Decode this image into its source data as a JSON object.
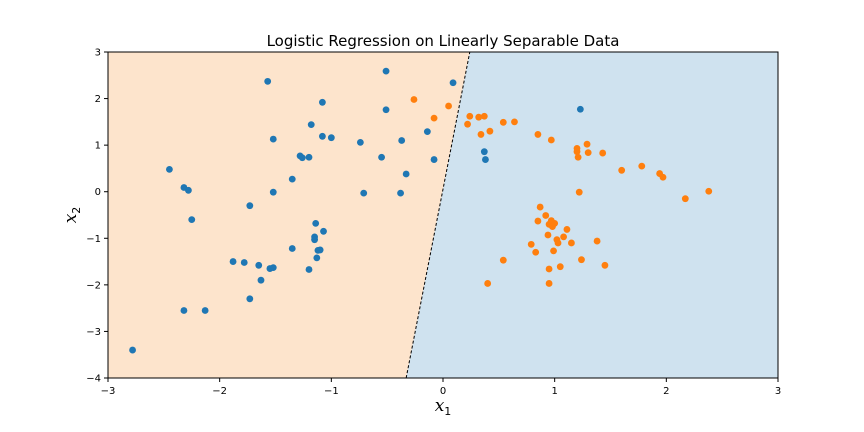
{
  "chart_data": {
    "type": "scatter",
    "title": "Logistic Regression on Linearly Separable Data",
    "xlabel": {
      "base": "x",
      "sub": "1"
    },
    "ylabel": {
      "base": "x",
      "sub": "2"
    },
    "xlim": [
      -3,
      3
    ],
    "ylim": [
      -4,
      3
    ],
    "xticks": [
      -3,
      -2,
      -1,
      0,
      1,
      2,
      3
    ],
    "yticks": [
      -4,
      -3,
      -2,
      -1,
      0,
      1,
      2,
      3
    ],
    "grid": false,
    "decision_boundary": {
      "points": [
        [
          -0.33,
          -4.0
        ],
        [
          0.24,
          3.0
        ]
      ],
      "style": "dashed",
      "color": "#000000"
    },
    "regions": [
      {
        "class": 0,
        "side": "left",
        "color": "#fde4cc"
      },
      {
        "class": 1,
        "side": "right",
        "color": "#cfe2ef"
      }
    ],
    "series": [
      {
        "class": 0,
        "color": "#1f77b4",
        "points": [
          [
            -2.78,
            -3.4
          ],
          [
            -2.45,
            0.48
          ],
          [
            -2.32,
            0.09
          ],
          [
            -2.28,
            0.03
          ],
          [
            -2.25,
            -0.6
          ],
          [
            -2.32,
            -2.55
          ],
          [
            -2.13,
            -2.55
          ],
          [
            -1.88,
            -1.5
          ],
          [
            -1.78,
            -1.52
          ],
          [
            -1.73,
            -0.3
          ],
          [
            -1.73,
            -2.3
          ],
          [
            -1.65,
            -1.58
          ],
          [
            -1.63,
            -1.9
          ],
          [
            -1.57,
            2.37
          ],
          [
            -1.55,
            -1.65
          ],
          [
            -1.52,
            -1.63
          ],
          [
            -1.52,
            1.13
          ],
          [
            -1.52,
            -0.01
          ],
          [
            -1.35,
            0.27
          ],
          [
            -1.35,
            -1.22
          ],
          [
            -1.28,
            0.77
          ],
          [
            -1.26,
            0.73
          ],
          [
            -1.2,
            0.74
          ],
          [
            -1.2,
            -1.67
          ],
          [
            -1.18,
            1.44
          ],
          [
            -1.15,
            -0.97
          ],
          [
            -1.15,
            -1.03
          ],
          [
            -1.14,
            -0.68
          ],
          [
            -1.12,
            -1.26
          ],
          [
            -1.13,
            -1.42
          ],
          [
            -1.1,
            -1.25
          ],
          [
            -1.08,
            1.92
          ],
          [
            -1.08,
            1.19
          ],
          [
            -1.07,
            -0.85
          ],
          [
            -1.0,
            1.16
          ],
          [
            -0.74,
            1.06
          ],
          [
            -0.71,
            -0.03
          ],
          [
            -0.55,
            0.74
          ],
          [
            -0.51,
            2.59
          ],
          [
            -0.51,
            1.76
          ],
          [
            -0.38,
            -0.03
          ],
          [
            -0.37,
            1.1
          ],
          [
            -0.33,
            0.38
          ],
          [
            -0.14,
            1.29
          ],
          [
            -0.08,
            0.69
          ],
          [
            0.09,
            2.34
          ],
          [
            0.37,
            0.86
          ],
          [
            0.38,
            0.69
          ],
          [
            1.23,
            1.77
          ]
        ]
      },
      {
        "class": 1,
        "color": "#ff7f0e",
        "points": [
          [
            -0.26,
            1.98
          ],
          [
            -0.08,
            1.58
          ],
          [
            0.05,
            1.84
          ],
          [
            0.22,
            1.45
          ],
          [
            0.24,
            1.62
          ],
          [
            0.32,
            1.6
          ],
          [
            0.34,
            1.23
          ],
          [
            0.37,
            1.62
          ],
          [
            0.4,
            -1.97
          ],
          [
            0.42,
            1.3
          ],
          [
            0.54,
            1.49
          ],
          [
            0.54,
            -1.47
          ],
          [
            0.64,
            1.5
          ],
          [
            0.79,
            -1.13
          ],
          [
            0.83,
            -1.3
          ],
          [
            0.85,
            1.23
          ],
          [
            0.85,
            -0.63
          ],
          [
            0.87,
            -0.33
          ],
          [
            0.92,
            -0.51
          ],
          [
            0.94,
            -0.93
          ],
          [
            0.95,
            -0.7
          ],
          [
            0.95,
            -1.66
          ],
          [
            0.95,
            -1.97
          ],
          [
            0.97,
            1.11
          ],
          [
            0.97,
            -0.62
          ],
          [
            0.98,
            -0.75
          ],
          [
            0.99,
            -1.27
          ],
          [
            1.0,
            -0.68
          ],
          [
            1.02,
            -1.03
          ],
          [
            1.03,
            -1.1
          ],
          [
            1.05,
            -1.61
          ],
          [
            1.08,
            -0.97
          ],
          [
            1.11,
            -0.81
          ],
          [
            1.15,
            -1.1
          ],
          [
            1.2,
            0.93
          ],
          [
            1.2,
            0.86
          ],
          [
            1.21,
            0.74
          ],
          [
            1.22,
            -0.01
          ],
          [
            1.24,
            -1.46
          ],
          [
            1.29,
            1.02
          ],
          [
            1.3,
            0.84
          ],
          [
            1.38,
            -1.06
          ],
          [
            1.43,
            0.83
          ],
          [
            1.45,
            -1.58
          ],
          [
            1.6,
            0.46
          ],
          [
            1.78,
            0.55
          ],
          [
            1.94,
            0.39
          ],
          [
            1.97,
            0.31
          ],
          [
            2.17,
            -0.15
          ],
          [
            2.38,
            0.01
          ]
        ]
      }
    ]
  }
}
